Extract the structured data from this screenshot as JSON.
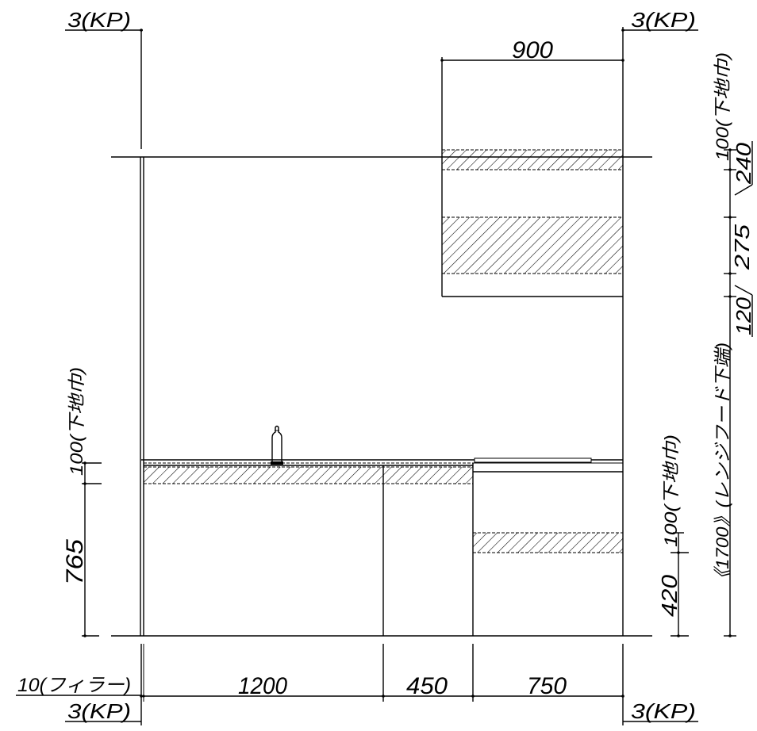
{
  "colors": {
    "line": "#000000",
    "background": "#ffffff"
  },
  "drawing": {
    "grid_refs": {
      "top_left": "3(KP)",
      "top_right": "3(KP)",
      "bottom_left": "3(KP)",
      "bottom_right": "3(KP)"
    },
    "top_dimension": "900",
    "far_right_dimensions": {
      "substrate": "100(下地巾)",
      "segment_1": "240",
      "segment_2": "275",
      "segment_3": "120",
      "hood_bottom": "《1700》(レンジフード下端)"
    },
    "left_dimensions": {
      "substrate": "100(下地巾)",
      "counter_height": "765"
    },
    "inner_right_dimensions": {
      "substrate": "100(下地巾)",
      "height": "420"
    },
    "bottom_dimensions": {
      "filler": "10(フィラー)",
      "widths": [
        "1200",
        "450",
        "750"
      ]
    }
  }
}
